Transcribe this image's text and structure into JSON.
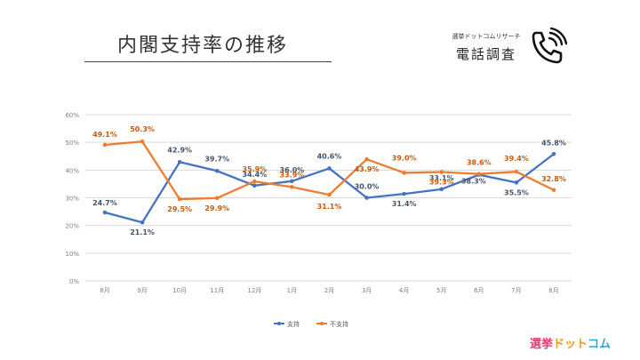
{
  "header": {
    "title": "内閣支持率の推移",
    "brand_small": "選挙ドットコムリサーチ",
    "brand_big": "電話調査"
  },
  "logo": {
    "part1": "選挙",
    "part2": "ドット",
    "part3": "コム"
  },
  "colors": {
    "support": "#4472c4",
    "nonsupport": "#ed7d31",
    "grid": "#d9d9d9",
    "axis_text": "#808080"
  },
  "chart_data": {
    "type": "line",
    "title": "内閣支持率の推移",
    "categories": [
      "8月",
      "9月",
      "10月",
      "11月",
      "12月",
      "1月",
      "2月",
      "3月",
      "4月",
      "5月",
      "6月",
      "7月",
      "8月"
    ],
    "y_ticks": [
      "0%",
      "10%",
      "20%",
      "30%",
      "40%",
      "50%",
      "60%"
    ],
    "ylim": [
      0,
      60
    ],
    "series": [
      {
        "name": "支持",
        "values": [
          24.7,
          21.1,
          42.9,
          39.7,
          34.4,
          36.0,
          40.6,
          30.0,
          31.4,
          33.1,
          38.3,
          35.5,
          45.8
        ],
        "labels": [
          "24.7%",
          "21.1%",
          "42.9%",
          "39.7%",
          "34.4%",
          "36.0%",
          "40.6%",
          "30.0%",
          "31.4%",
          "33.1%",
          "38.3%",
          "35.5%",
          "45.8%"
        ]
      },
      {
        "name": "不支持",
        "values": [
          49.1,
          50.3,
          29.5,
          29.9,
          35.9,
          33.9,
          31.1,
          43.9,
          39.0,
          39.3,
          38.6,
          39.4,
          32.8
        ],
        "labels": [
          "49.1%",
          "50.3%",
          "29.5%",
          "29.9%",
          "35.9%",
          "33.9%",
          "31.1%",
          "43.9%",
          "39.0%",
          "39.3%",
          "38.6%",
          "39.4%",
          "32.8%"
        ]
      }
    ],
    "legend": "bottom"
  }
}
